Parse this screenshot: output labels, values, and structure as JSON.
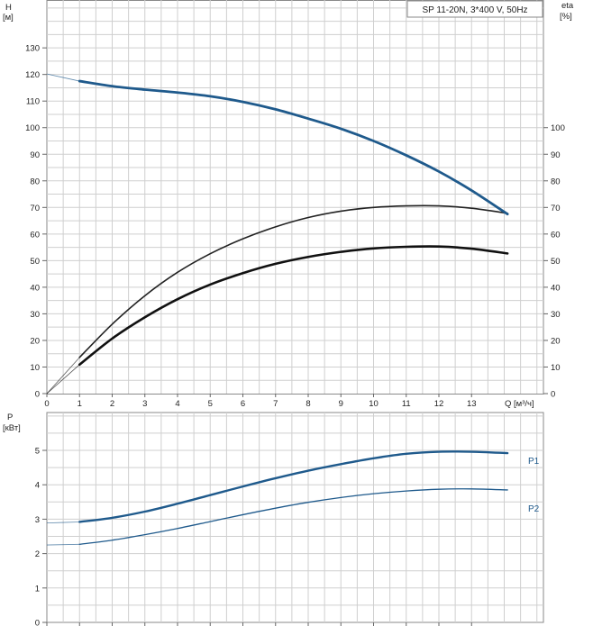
{
  "chart_data": [
    {
      "type": "line",
      "title": "SP 11-20N, 3*400 V, 50Hz",
      "left_axis": {
        "label_line1": "H",
        "label_line2": "[м]",
        "ticks": [
          0,
          10,
          20,
          30,
          40,
          50,
          60,
          70,
          80,
          90,
          100,
          110,
          120,
          130
        ],
        "range": [
          0,
          148
        ]
      },
      "right_axis": {
        "label_line1": "eta",
        "label_line2": "[%]",
        "ticks": [
          0,
          10,
          20,
          30,
          40,
          50,
          60,
          70,
          80,
          90,
          100
        ],
        "range": [
          0,
          148
        ]
      },
      "x_axis": {
        "label": "Q [м³/ч]",
        "ticks": [
          0,
          1,
          2,
          3,
          4,
          5,
          6,
          7,
          8,
          9,
          10,
          11,
          12,
          13
        ],
        "range": [
          0,
          15.2
        ]
      },
      "grid": true,
      "series": [
        {
          "role": "head",
          "color": "#1f5a8c",
          "x": [
            0,
            1,
            2,
            3,
            4,
            5,
            6,
            7,
            8,
            9,
            10,
            11,
            12,
            13,
            14.1
          ],
          "values": [
            120.2,
            117.5,
            115.6,
            114.3,
            113.2,
            111.8,
            109.7,
            106.9,
            103.4,
            99.6,
            95.0,
            89.6,
            83.5,
            76.4,
            67.5
          ],
          "solid_from": 1
        },
        {
          "role": "efficiency-upper",
          "color": "#222222",
          "x": [
            0,
            1,
            2,
            3,
            4,
            5,
            6,
            7,
            8,
            9,
            10,
            11,
            12,
            13,
            14.1
          ],
          "values": [
            0,
            13.6,
            26.1,
            36.8,
            45.6,
            52.6,
            58.2,
            62.7,
            66.2,
            68.6,
            70.0,
            70.6,
            70.6,
            69.7,
            67.8
          ],
          "solid_from": 1
        },
        {
          "role": "efficiency-lower",
          "color": "#111111",
          "x": [
            0,
            1,
            2,
            3,
            4,
            5,
            6,
            7,
            8,
            9,
            10,
            11,
            12,
            13,
            14.1
          ],
          "values": [
            0,
            10.9,
            20.7,
            28.7,
            35.5,
            41.0,
            45.3,
            48.8,
            51.4,
            53.3,
            54.6,
            55.2,
            55.3,
            54.5,
            52.7
          ],
          "solid_from": 1
        }
      ]
    },
    {
      "type": "line",
      "left_axis": {
        "label_line1": "P",
        "label_line2": "[кВт]",
        "ticks": [
          0,
          1,
          2,
          3,
          4,
          5
        ],
        "range": [
          0,
          6.1
        ]
      },
      "x_axis": {
        "ticks": [
          0,
          1,
          2,
          3,
          4,
          5,
          6,
          7,
          8,
          9,
          10,
          11,
          12,
          13
        ],
        "range": [
          0,
          15.2
        ]
      },
      "grid": true,
      "series": [
        {
          "name": "P1",
          "color": "#1f5a8c",
          "x": [
            0,
            1,
            2,
            3,
            4,
            5,
            6,
            7,
            8,
            9,
            10,
            11,
            12,
            13,
            14.1
          ],
          "values": [
            2.89,
            2.92,
            3.04,
            3.22,
            3.45,
            3.7,
            3.95,
            4.19,
            4.41,
            4.6,
            4.77,
            4.9,
            4.96,
            4.96,
            4.92
          ],
          "solid_from": 1
        },
        {
          "name": "P2",
          "color": "#1f5a8c",
          "x": [
            0,
            1,
            2,
            3,
            4,
            5,
            6,
            7,
            8,
            9,
            10,
            11,
            12,
            13,
            14.1
          ],
          "values": [
            2.25,
            2.27,
            2.39,
            2.55,
            2.73,
            2.93,
            3.13,
            3.32,
            3.49,
            3.63,
            3.74,
            3.82,
            3.87,
            3.88,
            3.85
          ],
          "solid_from": 1
        }
      ]
    }
  ]
}
